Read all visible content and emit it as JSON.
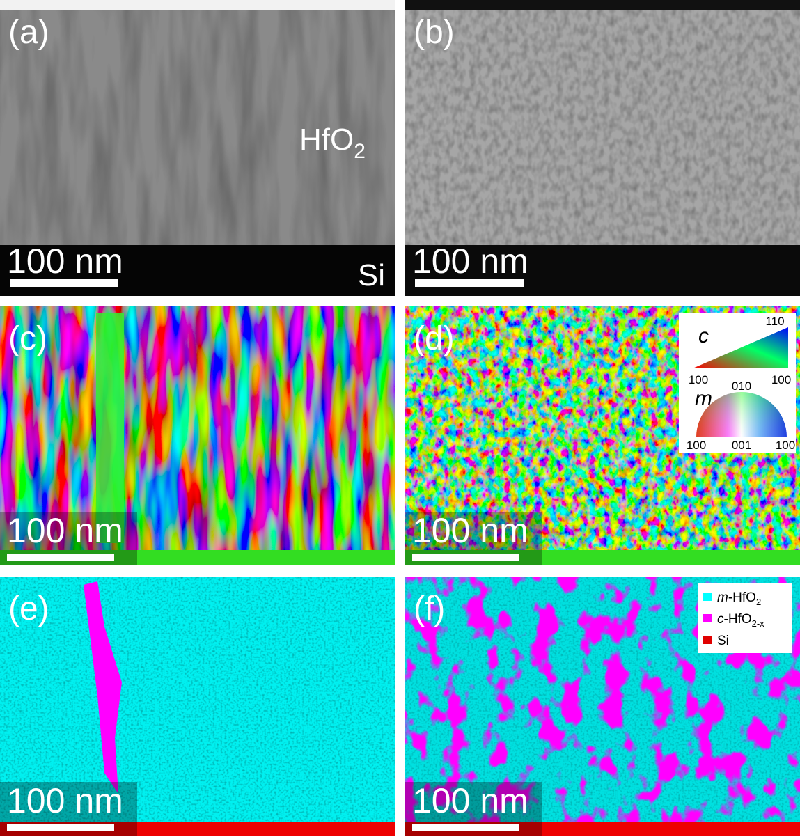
{
  "panels": [
    {
      "label": "(a)",
      "scale_bar": "100 nm"
    },
    {
      "label": "(b)",
      "scale_bar": "100 nm"
    },
    {
      "label": "(c)",
      "scale_bar": "100 nm"
    },
    {
      "label": "(d)",
      "scale_bar": "100 nm"
    },
    {
      "label": "(e)",
      "scale_bar": "100 nm"
    },
    {
      "label": "(f)",
      "scale_bar": "100 nm"
    }
  ],
  "annotations": {
    "film": {
      "base": "HfO",
      "sub": "2"
    },
    "substrate": "Si"
  },
  "orientation_key": {
    "cubic": {
      "symbol": "c",
      "top": "110",
      "left": "100",
      "right": "100"
    },
    "monoclinic": {
      "symbol": "m",
      "top": "010",
      "left": "100",
      "middle": "001",
      "right": "100"
    }
  },
  "phase_legend": [
    {
      "italic": "m",
      "text": "-HfO",
      "sub": "2",
      "color": "#00ffff"
    },
    {
      "italic": "c",
      "text": "-HfO",
      "sub": "2-x",
      "color": "#ff00ff"
    },
    {
      "italic": "",
      "text": "Si",
      "sub": "",
      "color": "#e00000"
    }
  ]
}
